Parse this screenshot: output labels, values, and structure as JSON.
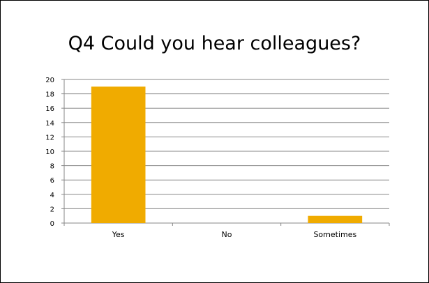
{
  "chart_data": {
    "type": "bar",
    "title": "Q4 Could you hear colleagues?",
    "categories": [
      "Yes",
      "No",
      "Sometimes"
    ],
    "values": [
      19,
      0,
      1
    ],
    "ylim": [
      0,
      20
    ],
    "yticks": [
      0,
      2,
      4,
      6,
      8,
      10,
      12,
      14,
      16,
      18,
      20
    ],
    "grid": true,
    "legend": "none",
    "bar_color": "#F0AB00",
    "grid_color": "#878787",
    "axis_color": "#878787"
  }
}
